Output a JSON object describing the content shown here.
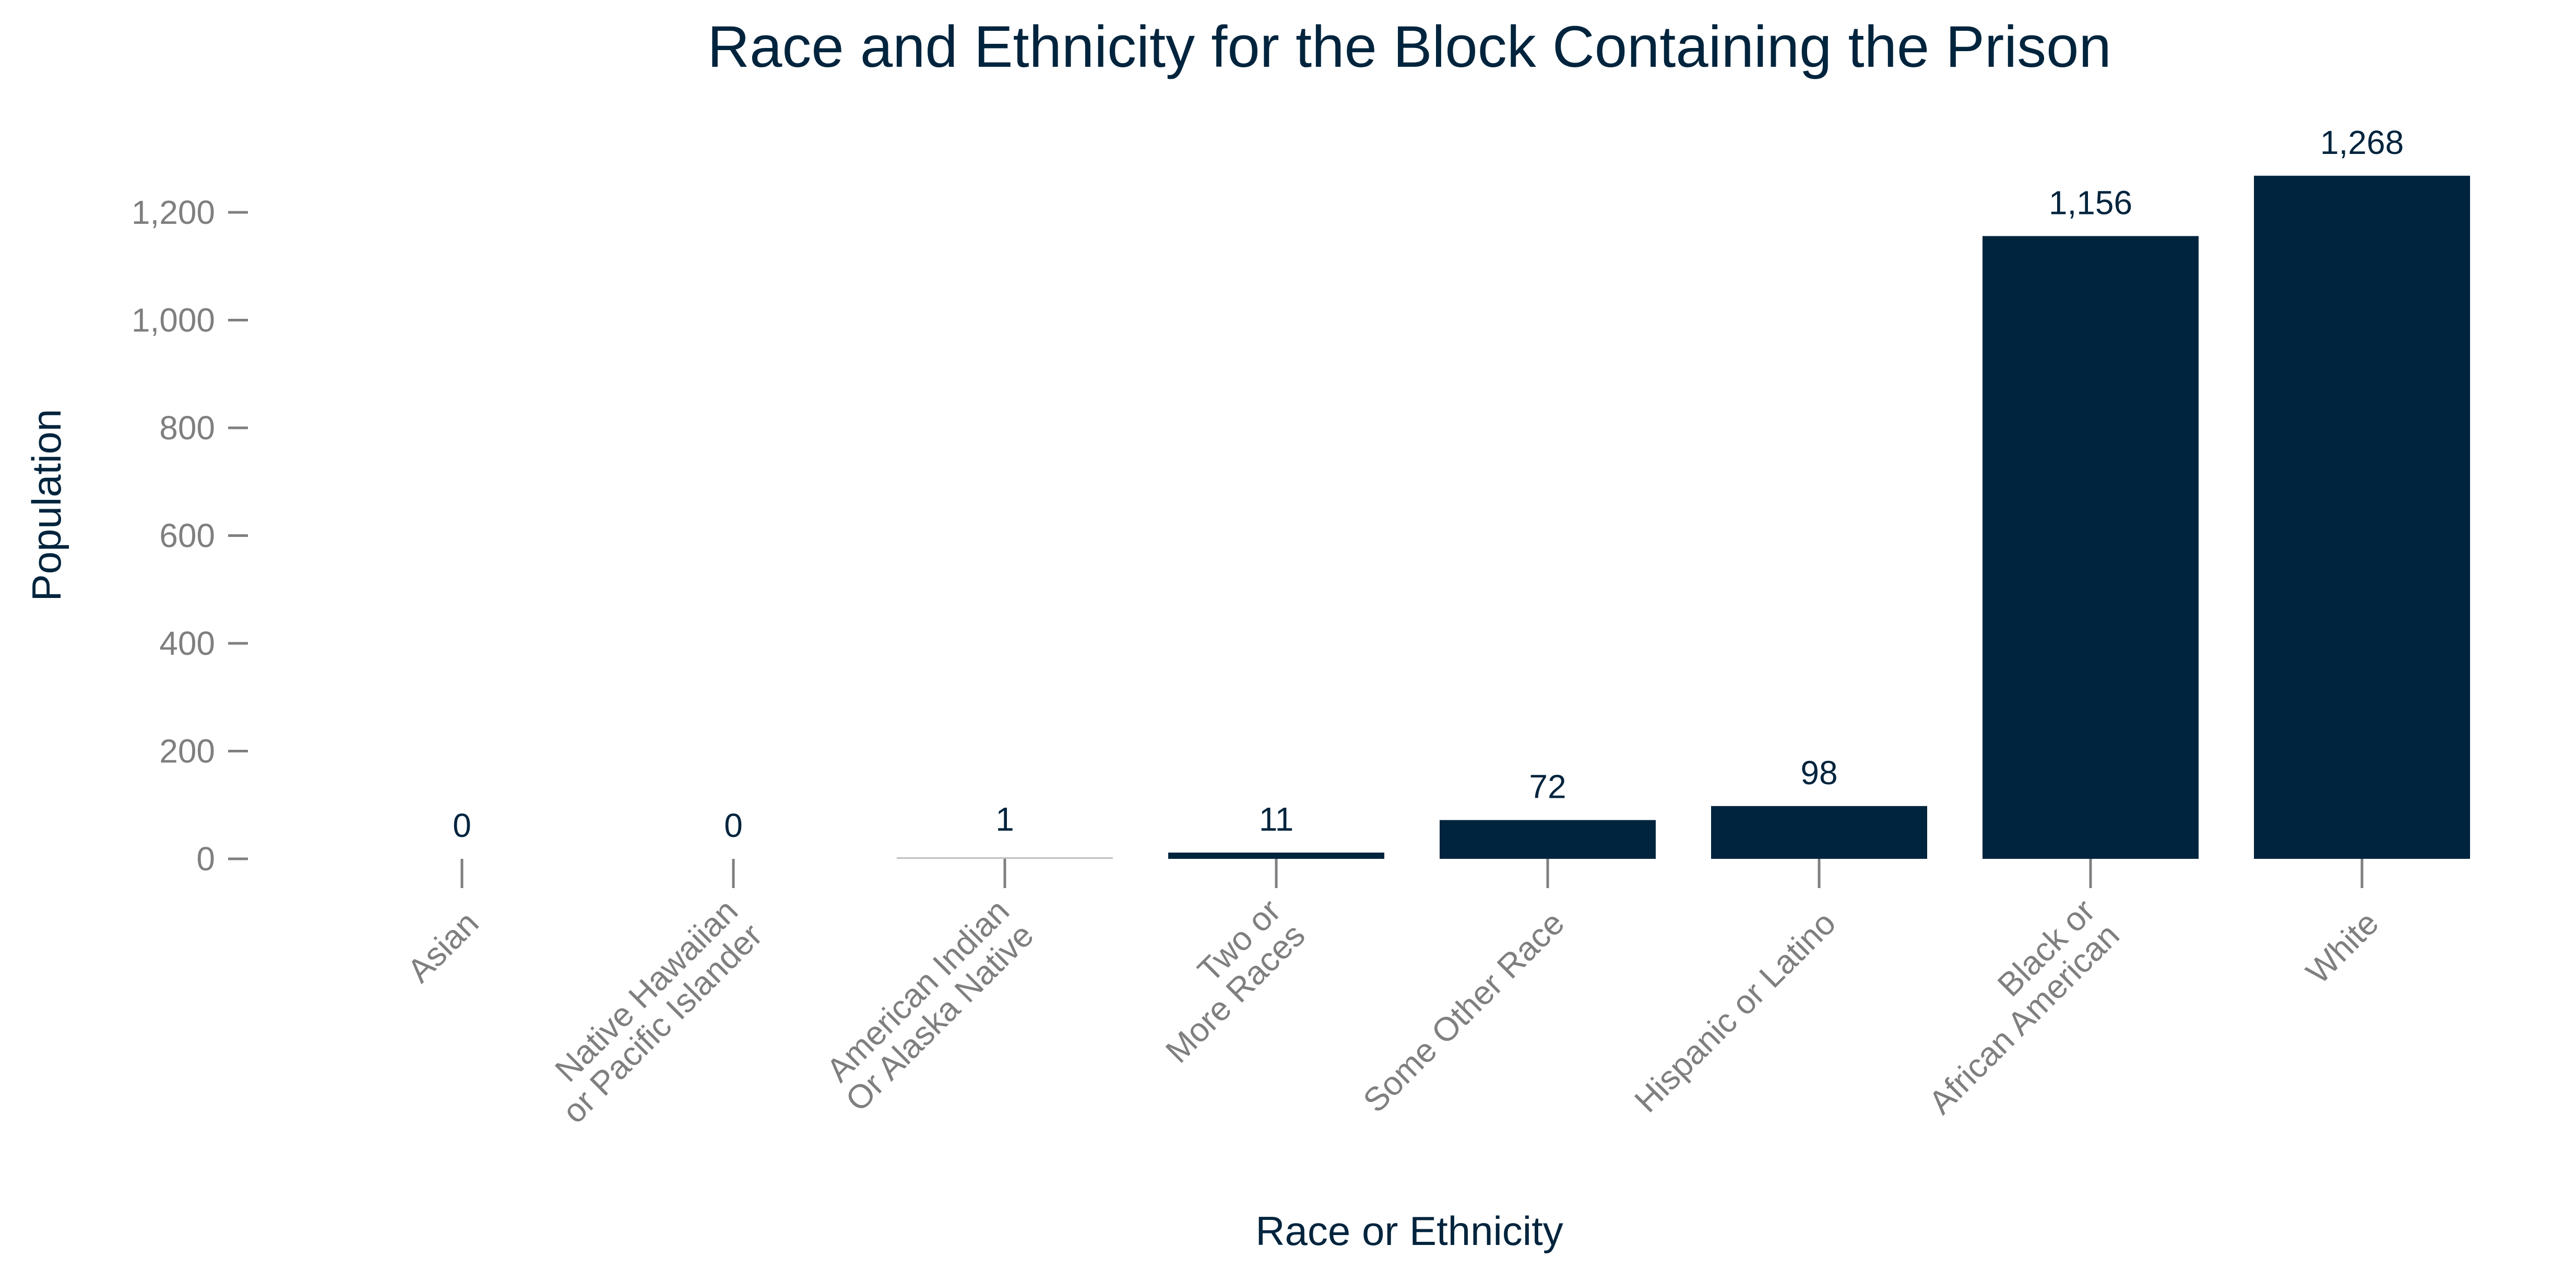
{
  "colors": {
    "bar": "#00243d",
    "bar_hairline": "#bfbfbf",
    "title": "#00243d",
    "axis_text": "#7f7f7f",
    "tick_mark": "#7f7f7f"
  },
  "chart_data": {
    "type": "bar",
    "title": "Race and Ethnicity for the Block Containing the Prison",
    "xlabel": "Race or Ethnicity",
    "ylabel": "Population",
    "ylim": [
      0,
      1300
    ],
    "yticks": [
      0,
      200,
      400,
      600,
      800,
      1000,
      1200
    ],
    "ytick_labels": [
      "0",
      "200",
      "400",
      "600",
      "800",
      "1,000",
      "1,200"
    ],
    "grid": false,
    "categories": [
      [
        "Asian"
      ],
      [
        "Native Hawaiian",
        "or Pacific Islander"
      ],
      [
        "American Indian",
        "Or Alaska Native"
      ],
      [
        "Two or",
        "More Races"
      ],
      [
        "Some Other Race"
      ],
      [
        "Hispanic or Latino"
      ],
      [
        "Black or",
        "African American"
      ],
      [
        "White"
      ]
    ],
    "values": [
      0,
      0,
      1,
      11,
      72,
      98,
      1156,
      1268
    ],
    "value_labels": [
      "0",
      "0",
      "1",
      "11",
      "72",
      "98",
      "1,156",
      "1,268"
    ]
  }
}
